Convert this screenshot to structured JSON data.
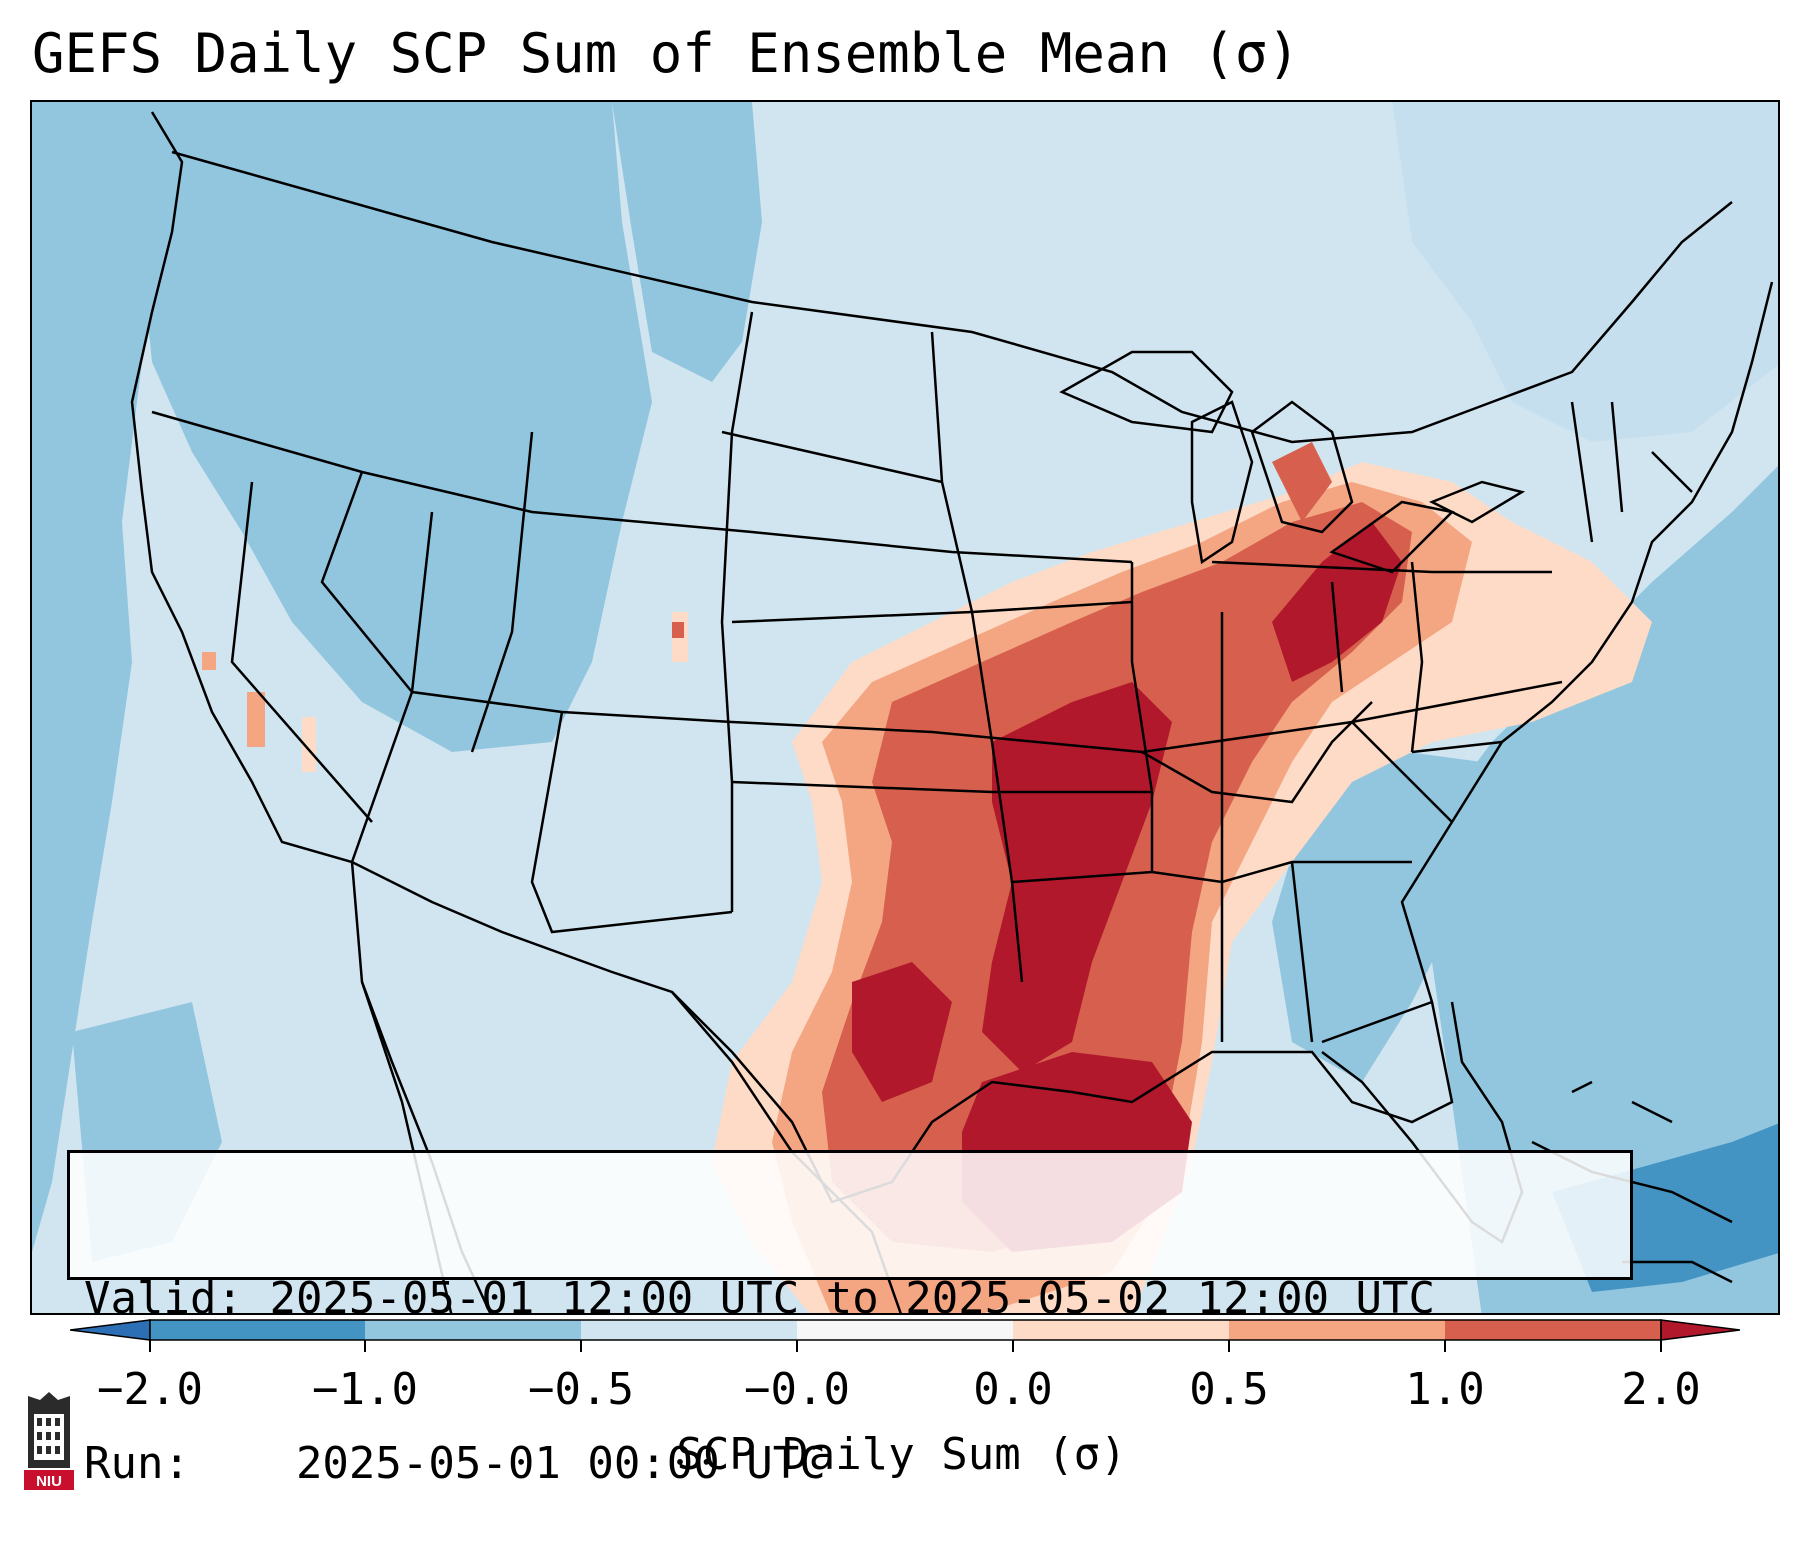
{
  "title": "GEFS Daily SCP Sum of Ensemble Mean (σ)",
  "info": {
    "valid_label": "Valid:",
    "valid_value": "2025-05-01 12:00 UTC to 2025-05-02 12:00 UTC",
    "run_label": "Run:",
    "run_value": "2025-05-01 00:00 UTC"
  },
  "colorbar": {
    "label": "SCP Daily Sum (σ)",
    "ticks": [
      "−2.0",
      "−1.0",
      "−0.5",
      "−0.0",
      "0.0",
      "0.5",
      "1.0",
      "2.0"
    ],
    "colors": {
      "below": "#2c6fb5",
      "b1": "#4393c3",
      "b2": "#92c5de",
      "b3": "#d1e5f0",
      "b4": "#f7f7f7",
      "b5": "#fddbc7",
      "b6": "#f4a582",
      "b7": "#d6604d",
      "above": "#b2182b"
    }
  },
  "map": {
    "projection": "Lambert conformal, CONUS",
    "background_colors": {
      "ocean": "#92c5de",
      "land_neutral": "#d1e5f0",
      "west": "#92c5de"
    }
  },
  "logo": {
    "text": "NIU",
    "name": "niu-logo"
  }
}
